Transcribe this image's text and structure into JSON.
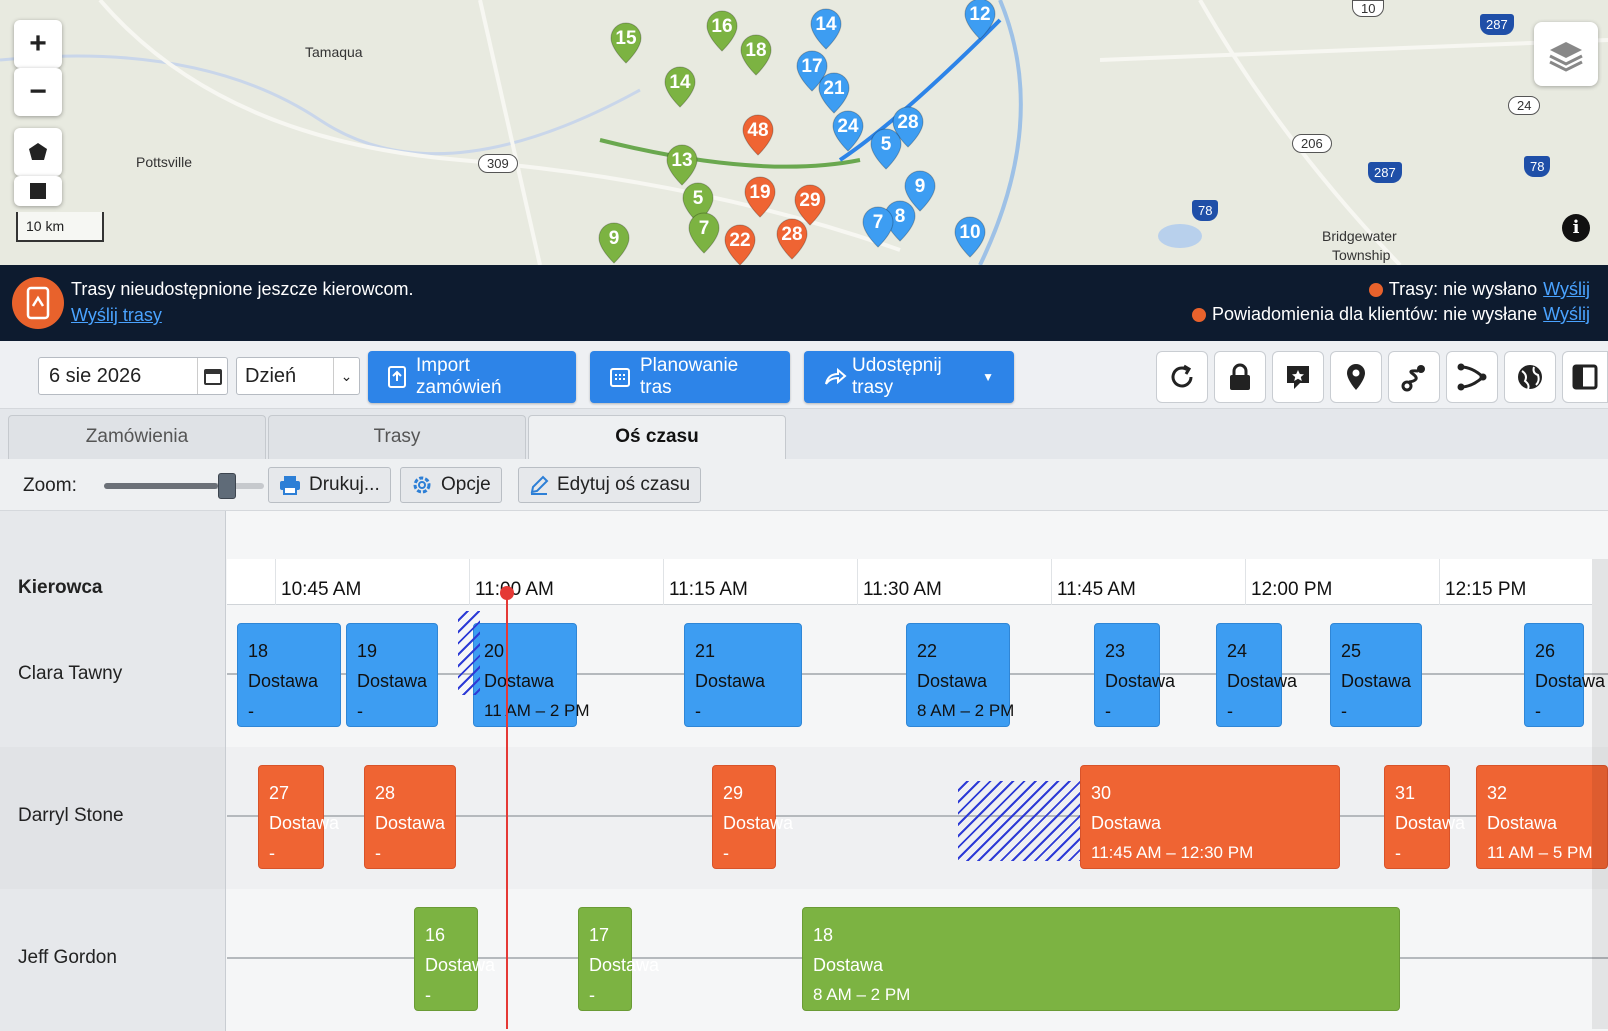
{
  "map": {
    "zoom_in": "+",
    "zoom_out": "−",
    "scale": "10 km",
    "places": [
      "Tamaqua",
      "Pottsville",
      "Bridgewater",
      "Township"
    ],
    "shields": [
      "309",
      "206",
      "24",
      "287",
      "78",
      "287",
      "78",
      "10"
    ],
    "blue_pins": [
      "14",
      "12",
      "17",
      "21",
      "24",
      "28",
      "5",
      "9",
      "8",
      "7",
      "10"
    ],
    "green_pins": [
      "15",
      "16",
      "18",
      "14",
      "13",
      "5",
      "7",
      "9"
    ],
    "orange_pins": [
      "48",
      "19",
      "29",
      "28",
      "22"
    ]
  },
  "banner": {
    "message": "Trasy nieudostępnione jeszcze kierowcom.",
    "send_routes": "Wyślij trasy",
    "routes_status": "Trasy: nie wysłano",
    "routes_send": "Wyślij",
    "notif_status": "Powiadomienia dla klientów: nie wysłane",
    "notif_send": "Wyślij"
  },
  "toolbar": {
    "date": "6 sie 2026",
    "period": "Dzień",
    "import": "Import zamówień",
    "planning": "Planowanie tras",
    "share": "Udostępnij trasy"
  },
  "tabs": [
    "Zamówienia",
    "Trasy",
    "Oś czasu"
  ],
  "zoomrow": {
    "label": "Zoom:",
    "zoom_level": 0.8,
    "print": "Drukuj...",
    "options": "Opcje",
    "edit": "Edytuj oś czasu"
  },
  "timeline": {
    "driver_header": "Kierowca",
    "ticks": [
      "10:45 AM",
      "11:00 AM",
      "11:15 AM",
      "11:30 AM",
      "11:45 AM",
      "12:00 PM",
      "12:15 PM"
    ],
    "drivers": [
      {
        "name": "Clara Tawny",
        "color": "#3d9df2",
        "stops": [
          {
            "n": "18",
            "type": "Dostawa",
            "window": "-"
          },
          {
            "n": "19",
            "type": "Dostawa",
            "window": "-"
          },
          {
            "n": "20",
            "type": "Dostawa",
            "window": "11 AM – 2 PM"
          },
          {
            "n": "21",
            "type": "Dostawa",
            "window": "-"
          },
          {
            "n": "22",
            "type": "Dostawa",
            "window": "8 AM – 2 PM"
          },
          {
            "n": "23",
            "type": "Dostawa",
            "window": "-"
          },
          {
            "n": "24",
            "type": "Dostawa",
            "window": "-"
          },
          {
            "n": "25",
            "type": "Dostawa",
            "window": "-"
          },
          {
            "n": "26",
            "type": "Dostawa",
            "window": "-"
          }
        ]
      },
      {
        "name": "Darryl Stone",
        "color": "#ef6433",
        "stops": [
          {
            "n": "27",
            "type": "Dostawa",
            "window": "-"
          },
          {
            "n": "28",
            "type": "Dostawa",
            "window": "-"
          },
          {
            "n": "29",
            "type": "Dostawa",
            "window": "-"
          },
          {
            "n": "30",
            "type": "Dostawa",
            "window": "11:45 AM – 12:30 PM"
          },
          {
            "n": "31",
            "type": "Dostawa",
            "window": "-"
          },
          {
            "n": "32",
            "type": "Dostawa",
            "window": "11 AM – 5 PM"
          }
        ]
      },
      {
        "name": "Jeff Gordon",
        "color": "#7cb342",
        "stops": [
          {
            "n": "16",
            "type": "Dostawa",
            "window": "-"
          },
          {
            "n": "17",
            "type": "Dostawa",
            "window": "-"
          },
          {
            "n": "18",
            "type": "Dostawa",
            "window": "8 AM – 2 PM"
          }
        ]
      }
    ]
  }
}
